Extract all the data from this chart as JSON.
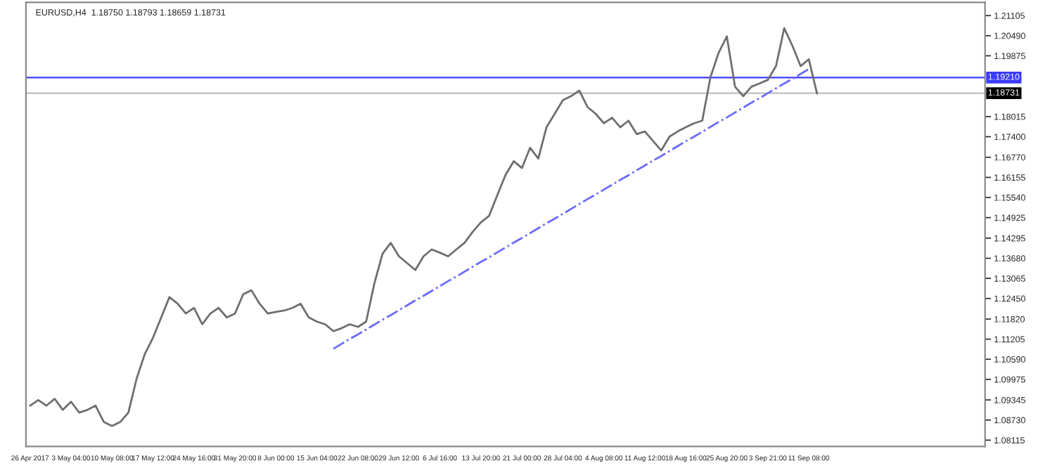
{
  "chart_data": {
    "type": "line",
    "title": "EURUSD,H4  1.18750 1.18793 1.18659 1.18731",
    "categories": [
      "26 Apr 2017",
      null,
      null,
      null,
      null,
      "3 May 04:00",
      null,
      null,
      null,
      null,
      "10 May 08:00",
      null,
      null,
      null,
      null,
      "17 May 12:00",
      null,
      null,
      null,
      null,
      "24 May 16:00",
      null,
      null,
      null,
      null,
      "31 May 20:00",
      null,
      null,
      null,
      null,
      "8 Jun 00:00",
      null,
      null,
      null,
      null,
      "15 Jun 04:00",
      null,
      null,
      null,
      null,
      "22 Jun 08:00",
      null,
      null,
      null,
      null,
      "29 Jun 12:00",
      null,
      null,
      null,
      null,
      "6 Jul 16:00",
      null,
      null,
      null,
      null,
      "13 Jul 20:00",
      null,
      null,
      null,
      null,
      "21 Jul 00:00",
      null,
      null,
      null,
      null,
      "28 Jul 04:00",
      null,
      null,
      null,
      null,
      "4 Aug 08:00",
      null,
      null,
      null,
      null,
      "11 Aug 12:00",
      null,
      null,
      null,
      null,
      "18 Aug 16:00",
      null,
      null,
      null,
      null,
      "25 Aug 20:00",
      null,
      null,
      null,
      null,
      "3 Sep 21:00",
      null,
      null,
      null,
      null,
      "11 Sep 08:00",
      null,
      null,
      null,
      null,
      null,
      null,
      null,
      null,
      null,
      null,
      null,
      null,
      null,
      null,
      null,
      null,
      null,
      null,
      null,
      null,
      null
    ],
    "series": [
      {
        "color": "#6e6e6e",
        "values": [
          1.0917,
          1.0934,
          1.0917,
          1.0938,
          1.0904,
          1.0929,
          1.0896,
          1.0904,
          1.0917,
          1.0867,
          1.0855,
          1.0867,
          1.0896,
          1.1,
          1.1075,
          1.1125,
          1.1187,
          1.1249,
          1.1229,
          1.1199,
          1.1216,
          1.1166,
          1.1199,
          1.1216,
          1.1187,
          1.1199,
          1.1258,
          1.127,
          1.1229,
          1.1199,
          1.1204,
          1.1208,
          1.1216,
          1.1229,
          1.1187,
          1.1174,
          1.1166,
          1.1145,
          1.1154,
          1.1166,
          1.1158,
          1.1174,
          1.1291,
          1.1382,
          1.1415,
          1.1374,
          1.1353,
          1.1332,
          1.1374,
          1.1395,
          1.1385,
          1.1374,
          1.1395,
          1.1415,
          1.1449,
          1.1478,
          1.1498,
          1.1561,
          1.1623,
          1.1665,
          1.1644,
          1.1706,
          1.1673,
          1.1769,
          1.181,
          1.1852,
          1.1864,
          1.1881,
          1.1831,
          1.181,
          1.1781,
          1.1798,
          1.1769,
          1.1789,
          1.1748,
          1.1756,
          1.1727,
          1.1698,
          1.174,
          1.1756,
          1.1769,
          1.1781,
          1.1789,
          1.1922,
          1.1997,
          1.2047,
          1.1893,
          1.1864,
          1.1893,
          1.1903,
          1.1914,
          1.1956,
          1.2072,
          1.2018,
          1.1956,
          1.1977,
          1.1872,
          null,
          null,
          null,
          null,
          null,
          null,
          null,
          null,
          null,
          null,
          null,
          null,
          null,
          null,
          null,
          null,
          null,
          null,
          null,
          null
        ]
      },
      {
        "color": "#6a6aff",
        "line_style": "dashed",
        "values": [
          null,
          null,
          null,
          null,
          null,
          null,
          null,
          null,
          null,
          null,
          null,
          null,
          null,
          null,
          null,
          null,
          null,
          null,
          null,
          null,
          null,
          null,
          null,
          null,
          null,
          null,
          null,
          null,
          null,
          null,
          null,
          null,
          null,
          null,
          null,
          null,
          null,
          1.1091,
          1.1106,
          1.1121,
          1.1135,
          1.115,
          1.1165,
          1.118,
          1.1194,
          1.1209,
          1.1224,
          1.1239,
          1.1253,
          1.1268,
          1.1283,
          1.1298,
          1.1312,
          1.1327,
          1.1342,
          1.1357,
          1.1371,
          1.1386,
          1.1401,
          1.1416,
          1.143,
          1.1445,
          1.146,
          1.1475,
          1.1489,
          1.1504,
          1.1519,
          1.1534,
          1.1549,
          1.1563,
          1.1578,
          1.1593,
          1.1608,
          1.1622,
          1.1637,
          1.1652,
          1.1667,
          1.1681,
          1.1696,
          1.1711,
          1.1726,
          1.174,
          1.1755,
          1.177,
          1.1785,
          1.1799,
          1.1814,
          1.1829,
          1.1844,
          1.1858,
          1.1873,
          1.1888,
          1.1903,
          1.1917,
          1.1932,
          1.1947,
          null,
          null,
          null,
          null,
          null,
          null,
          null,
          null,
          null,
          null,
          null,
          null,
          null,
          null,
          null,
          null,
          null,
          null,
          null,
          null,
          null
        ]
      }
    ],
    "ref_lines": [
      {
        "axis": "y",
        "value": 1.1921,
        "label": "1.19210",
        "color": "#3b3bff"
      },
      {
        "axis": "y",
        "value": 1.18731,
        "label": "1.18731",
        "color": "#c0c0c0"
      }
    ],
    "ylim": [
      1.0792,
      1.2151
    ],
    "yticks": [
      {
        "value": 1.21105,
        "label": "1.21105"
      },
      {
        "value": 1.2049,
        "label": "1.20490"
      },
      {
        "value": 1.19875,
        "label": "1.19875"
      },
      {
        "value": 1.18015,
        "label": "1.18015"
      },
      {
        "value": 1.174,
        "label": "1.17400"
      },
      {
        "value": 1.1677,
        "label": "1.16770"
      },
      {
        "value": 1.16155,
        "label": "1.16155"
      },
      {
        "value": 1.1554,
        "label": "1.15540"
      },
      {
        "value": 1.14925,
        "label": "1.14925"
      },
      {
        "value": 1.14295,
        "label": "1.14295"
      },
      {
        "value": 1.1368,
        "label": "1.13680"
      },
      {
        "value": 1.13065,
        "label": "1.13065"
      },
      {
        "value": 1.1245,
        "label": "1.12450"
      },
      {
        "value": 1.1182,
        "label": "1.11820"
      },
      {
        "value": 1.11205,
        "label": "1.11205"
      },
      {
        "value": 1.1059,
        "label": "1.10590"
      },
      {
        "value": 1.09975,
        "label": "1.09975"
      },
      {
        "value": 1.09345,
        "label": "1.09345"
      },
      {
        "value": 1.0873,
        "label": "1.08730"
      },
      {
        "value": 1.08115,
        "label": "1.08115"
      }
    ],
    "grid": false,
    "legend": false,
    "marker": "none",
    "line_style": "solid"
  }
}
